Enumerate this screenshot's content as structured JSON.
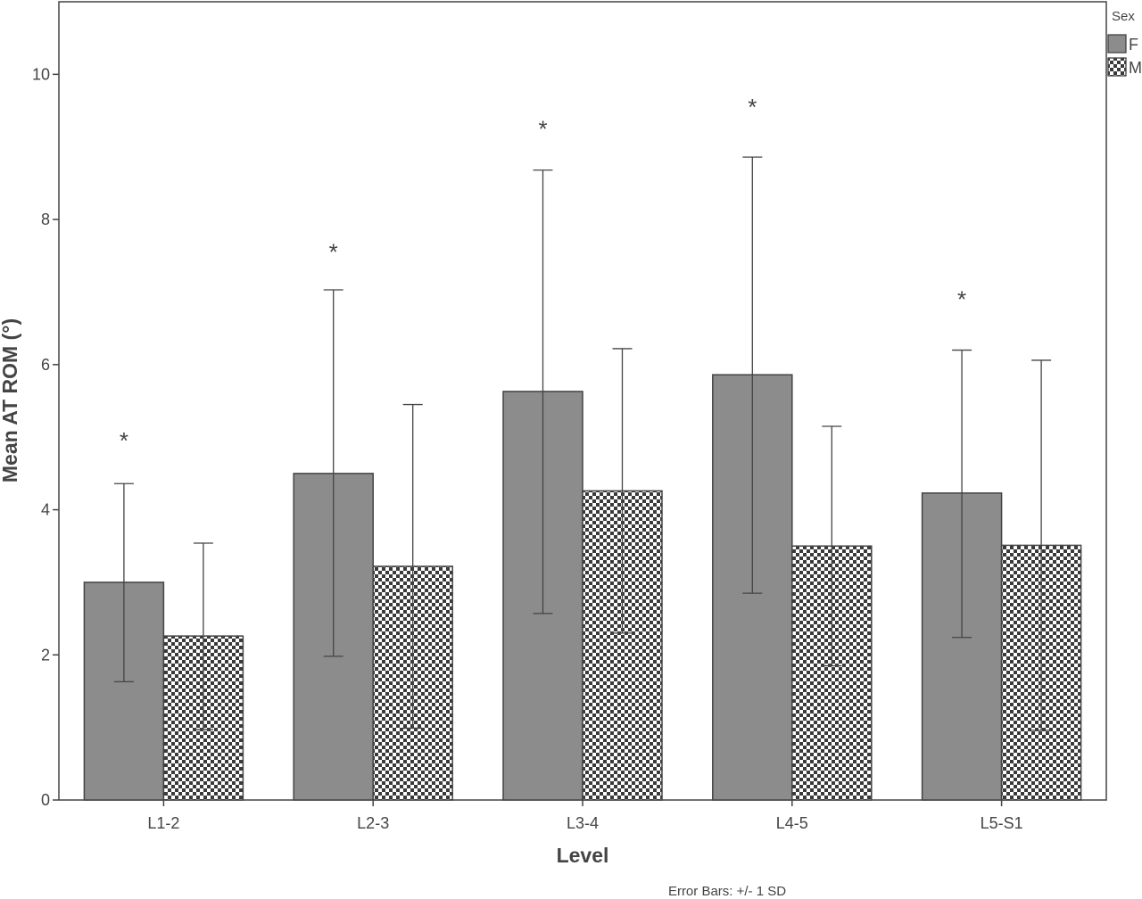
{
  "chart_data": {
    "type": "bar",
    "xlabel": "Level",
    "ylabel": "Mean AT ROM (°)",
    "ylim": [
      0,
      11
    ],
    "yticks": [
      0,
      2,
      4,
      6,
      8,
      10
    ],
    "grid": false,
    "legend": {
      "title": "Sex",
      "placement": "top-right",
      "entries": [
        "F",
        "M"
      ]
    },
    "categories": [
      "L1-2",
      "L2-3",
      "L3-4",
      "L4-5",
      "L5-S1"
    ],
    "series": [
      {
        "name": "F",
        "pattern": "solid",
        "color": "#8c8c8c",
        "values": [
          3.0,
          4.5,
          5.63,
          5.86,
          4.23
        ],
        "error_low": [
          1.63,
          1.98,
          2.57,
          2.85,
          2.24
        ],
        "error_high": [
          4.36,
          7.03,
          8.68,
          8.86,
          6.2
        ]
      },
      {
        "name": "M",
        "pattern": "checkerboard",
        "color": "#444444",
        "values": [
          2.26,
          3.22,
          4.26,
          3.5,
          3.51
        ],
        "error_low": [
          0.97,
          0.99,
          2.3,
          1.85,
          0.96
        ],
        "error_high": [
          3.54,
          5.45,
          6.22,
          5.15,
          6.06
        ]
      }
    ],
    "significance": {
      "marker": "*",
      "series": "F",
      "y": [
        5.0,
        7.6,
        9.3,
        9.6,
        6.95
      ]
    },
    "footnote": "Error Bars: +/- 1 SD"
  }
}
